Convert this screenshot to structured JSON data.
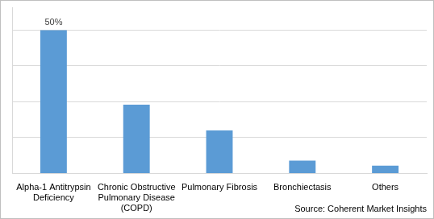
{
  "chart_data": {
    "type": "bar",
    "categories": [
      "Alpha-1 Antitrypsin Deficiency",
      "Chronic Obstructive Pulmonary Disease (COPD)",
      "Pulmonary Fibrosis",
      "Bronchiectasis",
      "Others"
    ],
    "values": [
      50,
      24,
      15,
      4.5,
      2.7
    ],
    "value_labels": [
      "50%",
      null,
      null,
      null,
      null
    ],
    "color": "#5b9bd5",
    "ylim": [
      0,
      58
    ],
    "yticks": [
      0,
      12.5,
      25,
      37.5,
      50
    ],
    "grid": true,
    "tick_labels": "x",
    "source": "Source: Coherent Market Insights"
  }
}
